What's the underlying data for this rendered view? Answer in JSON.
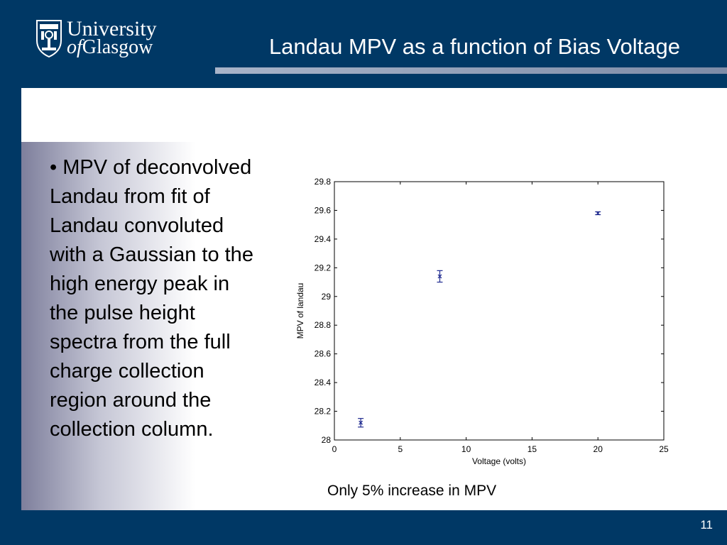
{
  "header": {
    "logo": {
      "line1": "University",
      "line2_of": "of",
      "line2_name": "Glasgow"
    },
    "title": "Landau MPV as a function of Bias Voltage"
  },
  "bullet": "• MPV of deconvolved Landau from fit of Landau convoluted with a Gaussian to the high energy peak in the pulse height spectra from the full charge collection region around the collection column.",
  "caption": "Only 5% increase in MPV",
  "footer": {
    "page_number": "11"
  },
  "colors": {
    "header_bg": "#003865",
    "marker": "#1f2a8f",
    "title_rule": "#8f9cb5"
  },
  "chart_data": {
    "type": "scatter",
    "title": "",
    "xlabel": "Voltage (volts)",
    "ylabel": "MPV of landau",
    "xlim": [
      0,
      25
    ],
    "ylim": [
      28,
      29.8
    ],
    "xticks": [
      0,
      5,
      10,
      15,
      20,
      25
    ],
    "yticks": [
      28,
      28.2,
      28.4,
      28.6,
      28.8,
      29,
      29.2,
      29.4,
      29.6,
      29.8
    ],
    "ytick_labels": [
      "28",
      "28.2",
      "28.4",
      "28.6",
      "28.8",
      "29",
      "29.2",
      "29.4",
      "29.6",
      "29.8"
    ],
    "grid": false,
    "legend": "none",
    "marker": "x",
    "points": [
      {
        "x": 2,
        "y": 28.12,
        "yerr": 0.03
      },
      {
        "x": 8,
        "y": 29.14,
        "yerr": 0.04
      },
      {
        "x": 20,
        "y": 29.58,
        "yerr": 0.01
      }
    ]
  }
}
